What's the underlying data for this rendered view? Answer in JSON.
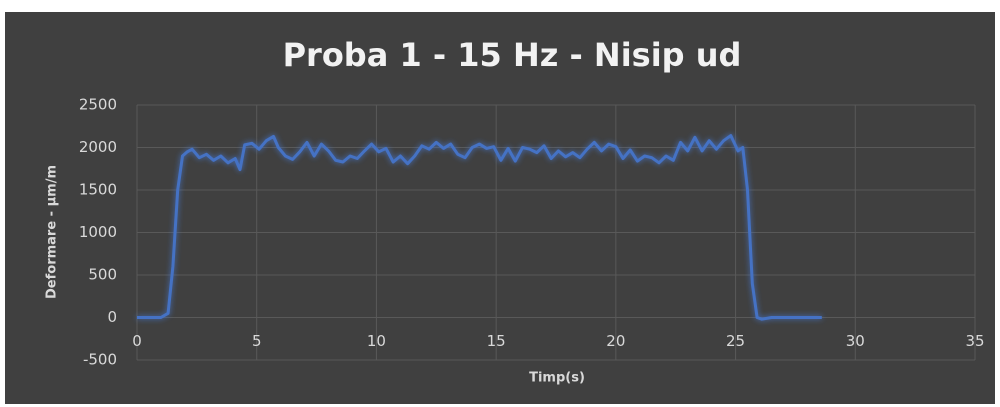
{
  "chart_data": {
    "type": "line",
    "title": "Proba 1 - 15 Hz - Nisip ud",
    "xlabel": "Timp(s)",
    "ylabel": "Deformare - µm/m",
    "x": [
      0,
      0.5,
      1,
      1.3,
      1.5,
      1.7,
      1.9,
      2.1,
      2.3,
      2.6,
      2.9,
      3.2,
      3.5,
      3.8,
      4.1,
      4.3,
      4.5,
      4.8,
      5.1,
      5.4,
      5.7,
      5.9,
      6.2,
      6.5,
      6.8,
      7.1,
      7.4,
      7.7,
      8.0,
      8.3,
      8.6,
      8.9,
      9.2,
      9.5,
      9.8,
      10.1,
      10.4,
      10.7,
      11.0,
      11.3,
      11.6,
      11.9,
      12.2,
      12.5,
      12.8,
      13.1,
      13.4,
      13.7,
      14.0,
      14.3,
      14.6,
      14.9,
      15.2,
      15.5,
      15.8,
      16.1,
      16.4,
      16.7,
      17.0,
      17.3,
      17.6,
      17.9,
      18.2,
      18.5,
      18.8,
      19.1,
      19.4,
      19.7,
      20.0,
      20.3,
      20.6,
      20.9,
      21.2,
      21.5,
      21.8,
      22.1,
      22.4,
      22.7,
      23.0,
      23.3,
      23.6,
      23.9,
      24.2,
      24.5,
      24.8,
      25.1,
      25.3,
      25.5,
      25.7,
      25.9,
      26.1,
      26.5,
      27,
      27.5,
      28,
      28.6
    ],
    "series": [
      {
        "name": "Deformare",
        "color": "#4472c4",
        "values": [
          0,
          0,
          0,
          50,
          600,
          1500,
          1900,
          1950,
          1980,
          1880,
          1920,
          1850,
          1900,
          1820,
          1870,
          1740,
          2030,
          2050,
          1980,
          2080,
          2130,
          2000,
          1900,
          1860,
          1950,
          2060,
          1900,
          2040,
          1960,
          1850,
          1830,
          1900,
          1870,
          1960,
          2040,
          1950,
          1990,
          1830,
          1900,
          1810,
          1900,
          2020,
          1980,
          2060,
          1990,
          2040,
          1920,
          1880,
          2000,
          2040,
          1990,
          2010,
          1850,
          1990,
          1840,
          2000,
          1980,
          1940,
          2020,
          1870,
          1960,
          1890,
          1940,
          1880,
          1980,
          2060,
          1960,
          2040,
          2010,
          1870,
          1970,
          1840,
          1900,
          1880,
          1820,
          1900,
          1850,
          2060,
          1960,
          2120,
          1960,
          2080,
          1980,
          2080,
          2140,
          1960,
          2000,
          1500,
          400,
          0,
          -20,
          0,
          0,
          0,
          0,
          0
        ]
      }
    ],
    "xlim": [
      0,
      35
    ],
    "xticks": [
      0,
      5,
      10,
      15,
      20,
      25,
      30,
      35
    ],
    "ylim": [
      -500,
      2500
    ],
    "yticks": [
      -500,
      0,
      500,
      1000,
      1500,
      2000,
      2500
    ],
    "grid": true
  }
}
